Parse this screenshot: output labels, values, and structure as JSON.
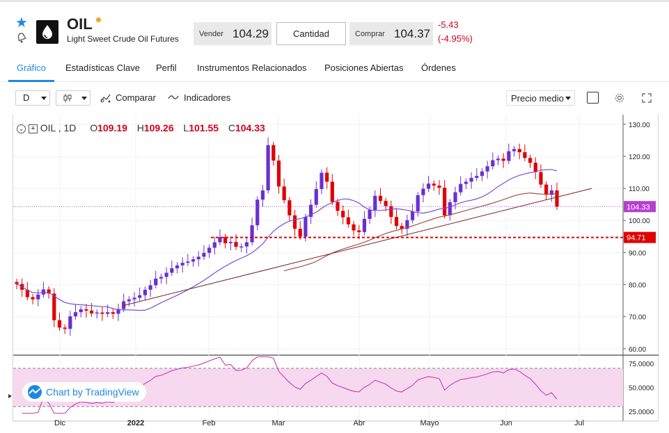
{
  "instrument": {
    "symbol": "OIL",
    "name": "Light Sweet Crude Oil Futures",
    "sell_label": "Vender",
    "sell_price": "104.29",
    "quantity_label": "Cantidad",
    "buy_label": "Comprar",
    "buy_price": "104.37",
    "change_abs": "-5.43",
    "change_pct": "(-4.95%)"
  },
  "tabs": [
    {
      "label": "Gráfico",
      "active": true
    },
    {
      "label": "Estadísticas Clave"
    },
    {
      "label": "Perfil"
    },
    {
      "label": "Instrumentos Relacionados"
    },
    {
      "label": "Posiciones Abiertas"
    },
    {
      "label": "Órdenes"
    }
  ],
  "toolbar": {
    "interval": "D",
    "compare_label": "Comparar",
    "indicators_label": "Indicadores",
    "price_type": "Precio medio"
  },
  "legend": {
    "symbol": "OIL , 1D",
    "o_label": "O",
    "o_value": "109.19",
    "h_label": "H",
    "h_value": "109.26",
    "l_label": "L",
    "l_value": "101.55",
    "c_label": "C",
    "c_value": "104.33"
  },
  "watermark": "Chart by TradingView",
  "colors": {
    "up": "#6a2fd1",
    "down": "#e00000",
    "ma_fast": "#7b4fd6",
    "ma_slow": "#a0524a",
    "trendline": "#7a1f1f",
    "rsi": "#c73ab5",
    "rsi_band": "#f6d9ef",
    "accent": "#1e88e5"
  },
  "chart_data": [
    {
      "type": "candlestick",
      "x_ticks": [
        "Dic",
        "2022",
        "Feb",
        "Mar",
        "Abr",
        "Mayo",
        "Jun",
        "Jul"
      ],
      "y_ticks": [
        "130.00",
        "120.00",
        "110.00",
        "100.00",
        "90.00",
        "80.00",
        "70.00",
        "60.00"
      ],
      "ylim": [
        58,
        133
      ],
      "last_price_label": "104.33",
      "support_label": "94.71",
      "support_level": 94.71,
      "series": [
        {
          "name": "OIL",
          "close": [
            80.2,
            78.4,
            76.1,
            75.4,
            76.9,
            78.5,
            77.2,
            68.9,
            66.6,
            66.2,
            70.1,
            71.4,
            72.3,
            71.9,
            71.0,
            71.3,
            70.9,
            71.4,
            70.9,
            72.4,
            74.8,
            75.4,
            75.9,
            76.7,
            78.4,
            79.8,
            81.9,
            82.4,
            83.7,
            85.1,
            86.0,
            86.8,
            87.2,
            87.9,
            88.7,
            89.9,
            91.5,
            93.2,
            94.8,
            92.9,
            93.3,
            91.8,
            91.9,
            93.2,
            98.5,
            106.5,
            109.4,
            123.5,
            118.7,
            110.6,
            106.3,
            101.6,
            97.4,
            95.0,
            101.1,
            104.9,
            109.8,
            114.9,
            112.1,
            105.8,
            103.0,
            101.0,
            98.8,
            96.9,
            96.4,
            100.5,
            103.3,
            107.7,
            106.1,
            104.5,
            101.1,
            98.3,
            97.4,
            100.1,
            102.8,
            107.9,
            109.9,
            111.5,
            110.9,
            110.2,
            101.6,
            105.7,
            108.8,
            111.4,
            112.1,
            113.3,
            113.9,
            115.3,
            116.9,
            118.8,
            119.3,
            118.6,
            121.6,
            122.3,
            121.3,
            119.5,
            118.0,
            115.1,
            111.2,
            108.0,
            109.4,
            104.3
          ]
        }
      ],
      "indicators": [
        "MA fast",
        "MA slow",
        "trendline",
        "support line"
      ]
    },
    {
      "type": "line",
      "name": "RSI",
      "y_ticks": [
        "75.0000",
        "50.0000",
        "25.0000"
      ],
      "ylim": [
        22,
        83
      ],
      "bands": [
        30,
        70
      ]
    }
  ]
}
